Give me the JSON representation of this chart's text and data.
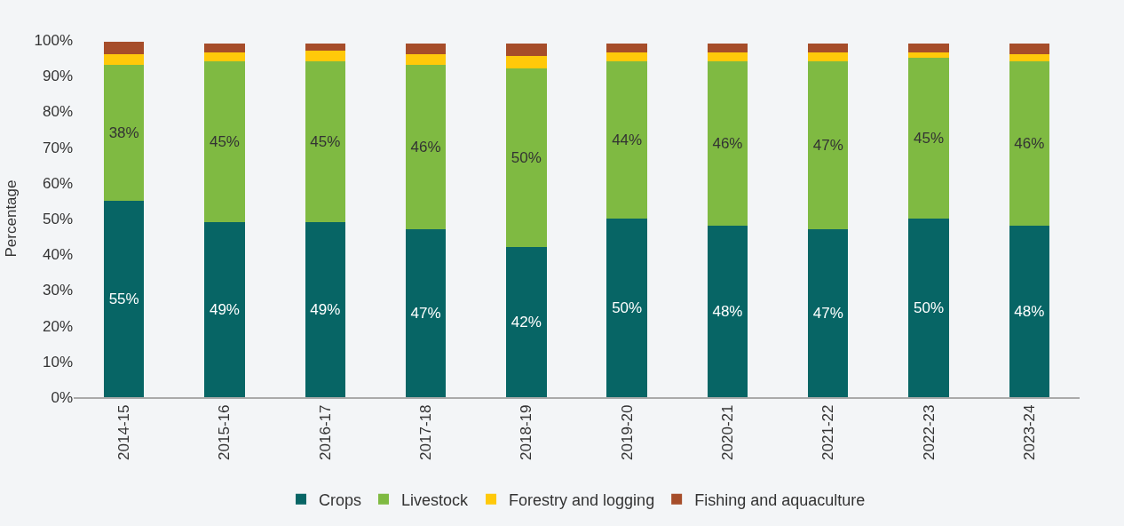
{
  "chart_data": {
    "type": "bar",
    "stacked": true,
    "ylabel": "Percentage",
    "categories": [
      "2014-15",
      "2015-16",
      "2016-17",
      "2017-18",
      "2018-19",
      "2019-20",
      "2020-21",
      "2021-22",
      "2022-23",
      "2023-24"
    ],
    "series": [
      {
        "name": "Crops",
        "color": "#076565",
        "values": [
          55,
          49,
          49,
          47,
          42,
          50,
          48,
          47,
          50,
          48
        ],
        "value_labels": [
          "55%",
          "49%",
          "49%",
          "47%",
          "42%",
          "50%",
          "48%",
          "47%",
          "50%",
          "48%"
        ]
      },
      {
        "name": "Livestock",
        "color": "#7fba42",
        "values": [
          38,
          45,
          45,
          46,
          50,
          44,
          46,
          47,
          45,
          46
        ],
        "value_labels": [
          "38%",
          "45%",
          "45%",
          "46%",
          "50%",
          "44%",
          "46%",
          "47%",
          "45%",
          "46%"
        ]
      },
      {
        "name": "Forestry and logging",
        "color": "#ffc90a",
        "values": [
          3,
          2.5,
          3,
          3,
          3.5,
          2.5,
          2.5,
          2.5,
          1.5,
          2
        ]
      },
      {
        "name": "Fishing and aquaculture",
        "color": "#a64d2a",
        "values": [
          3.5,
          2.5,
          2,
          3,
          3.5,
          2.5,
          2.5,
          2.5,
          2.5,
          3
        ]
      }
    ],
    "ylim": [
      0,
      100
    ],
    "yticks": [
      {
        "value": 0,
        "label": "0%"
      },
      {
        "value": 10,
        "label": "10%"
      },
      {
        "value": 20,
        "label": "20%"
      },
      {
        "value": 30,
        "label": "30%"
      },
      {
        "value": 40,
        "label": "40%"
      },
      {
        "value": 50,
        "label": "50%"
      },
      {
        "value": 60,
        "label": "60%"
      },
      {
        "value": 70,
        "label": "70%"
      },
      {
        "value": 80,
        "label": "80%"
      },
      {
        "value": 90,
        "label": "90%"
      },
      {
        "value": 100,
        "label": "100%"
      }
    ],
    "grid": false,
    "legend": "bottom"
  }
}
